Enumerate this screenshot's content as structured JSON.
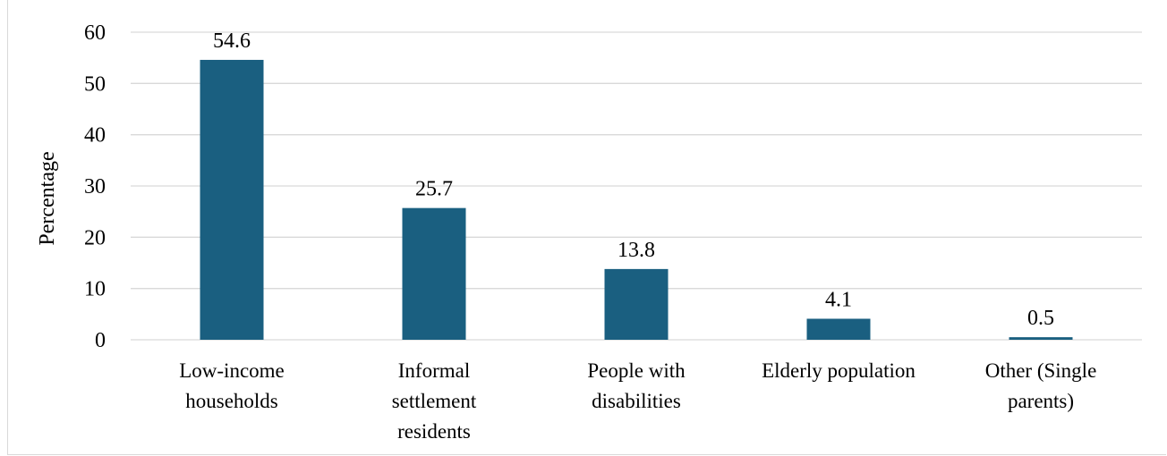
{
  "chart_data": {
    "type": "bar",
    "categories": [
      [
        "Low-income",
        "households"
      ],
      [
        "Informal",
        "settlement",
        "residents"
      ],
      [
        "People with",
        "disabilities"
      ],
      [
        "Elderly population"
      ],
      [
        "Other (Single",
        "parents)"
      ]
    ],
    "values": [
      54.6,
      25.7,
      13.8,
      4.1,
      0.5
    ],
    "data_labels": [
      "54.6",
      "25.7",
      "13.8",
      "4.1",
      "0.5"
    ],
    "title": "",
    "xlabel": "",
    "ylabel": "Percentage",
    "ylim": [
      0,
      60
    ],
    "yticks": [
      0,
      10,
      20,
      30,
      40,
      50,
      60
    ],
    "grid": true,
    "legend": "none",
    "bar_color": "#1a5f80",
    "grid_color": "#d9d9d9"
  }
}
